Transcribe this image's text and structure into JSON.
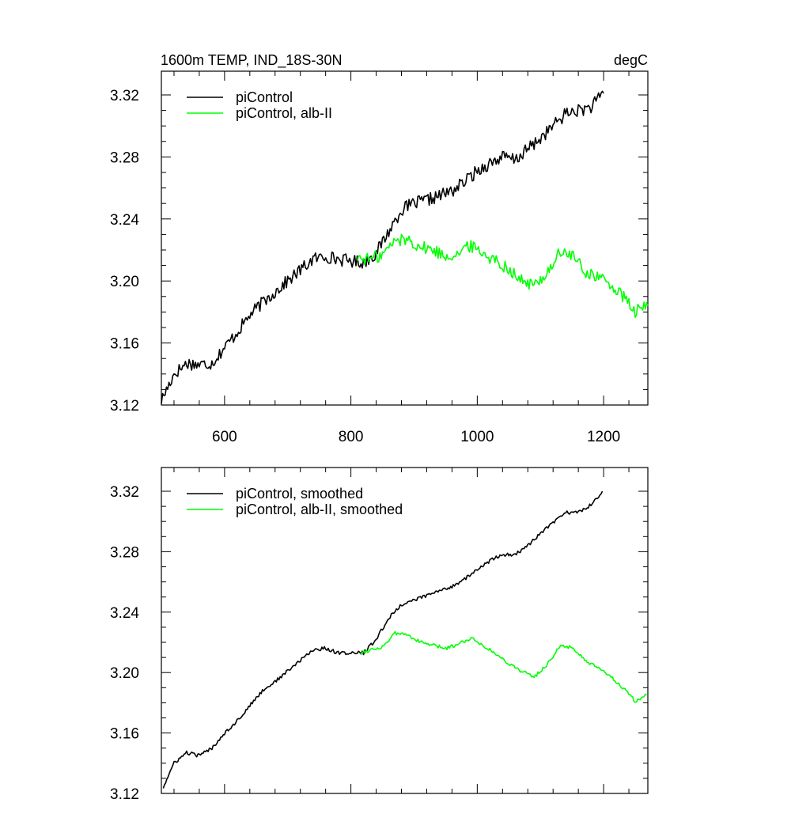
{
  "figure": {
    "title_left": "1600m TEMP, IND_18S-30N",
    "title_right": "degC"
  },
  "colors": {
    "piControl": "#000000",
    "alb_II": "#00ff00",
    "axes": "#000000"
  },
  "chart_data": [
    {
      "type": "line",
      "title": "1600m TEMP, IND_18S-30N",
      "units": "degC",
      "xlim": [
        500,
        1270
      ],
      "ylim": [
        3.12,
        3.33
      ],
      "x_ticks": [
        600,
        800,
        1000,
        1200
      ],
      "x_tick_labels": [
        "600",
        "800",
        "1000",
        "1200"
      ],
      "y_ticks": [
        3.12,
        3.16,
        3.2,
        3.24,
        3.28,
        3.32
      ],
      "y_tick_labels": [
        "3.12",
        "3.16",
        "3.20",
        "3.24",
        "3.28",
        "3.32"
      ],
      "legend_position": "top-left",
      "grid": false,
      "series": [
        {
          "name": "piControl",
          "color": "#000000",
          "x": [
            500,
            520,
            540,
            560,
            580,
            600,
            620,
            640,
            660,
            680,
            700,
            720,
            740,
            760,
            780,
            800,
            820,
            840,
            860,
            880,
            900,
            920,
            940,
            960,
            980,
            1000,
            1020,
            1040,
            1060,
            1080,
            1100,
            1120,
            1140,
            1160,
            1180,
            1200
          ],
          "y": [
            3.123,
            3.14,
            3.147,
            3.146,
            3.147,
            3.157,
            3.167,
            3.178,
            3.186,
            3.193,
            3.2,
            3.207,
            3.214,
            3.216,
            3.214,
            3.213,
            3.212,
            3.218,
            3.232,
            3.246,
            3.25,
            3.252,
            3.255,
            3.258,
            3.264,
            3.271,
            3.276,
            3.28,
            3.278,
            3.285,
            3.292,
            3.3,
            3.308,
            3.31,
            3.312,
            3.321
          ]
        },
        {
          "name": "piControl, alb-II",
          "color": "#00ff00",
          "x": [
            810,
            830,
            850,
            870,
            890,
            910,
            930,
            950,
            970,
            990,
            1010,
            1030,
            1050,
            1070,
            1090,
            1110,
            1130,
            1150,
            1170,
            1190,
            1210,
            1230,
            1250,
            1270
          ],
          "y": [
            3.215,
            3.214,
            3.217,
            3.226,
            3.227,
            3.222,
            3.22,
            3.216,
            3.218,
            3.223,
            3.218,
            3.213,
            3.208,
            3.2,
            3.197,
            3.205,
            3.218,
            3.217,
            3.206,
            3.203,
            3.198,
            3.19,
            3.18,
            3.184
          ]
        }
      ]
    },
    {
      "type": "line",
      "xlim": [
        500,
        1270
      ],
      "ylim": [
        3.12,
        3.33
      ],
      "x_ticks": [
        600,
        800,
        1000,
        1200
      ],
      "y_ticks": [
        3.12,
        3.16,
        3.2,
        3.24,
        3.28,
        3.32
      ],
      "y_tick_labels": [
        "3.12",
        "3.16",
        "3.20",
        "3.24",
        "3.28",
        "3.32"
      ],
      "legend_position": "top-left",
      "grid": false,
      "series": [
        {
          "name": "piControl, smoothed",
          "color": "#000000",
          "x": [
            503,
            520,
            540,
            560,
            580,
            600,
            620,
            640,
            660,
            680,
            700,
            720,
            740,
            760,
            780,
            800,
            820,
            840,
            860,
            880,
            900,
            920,
            940,
            960,
            980,
            1000,
            1020,
            1040,
            1060,
            1080,
            1100,
            1120,
            1140,
            1160,
            1180,
            1198
          ],
          "y": [
            3.124,
            3.14,
            3.147,
            3.145,
            3.15,
            3.16,
            3.168,
            3.178,
            3.188,
            3.194,
            3.201,
            3.208,
            3.215,
            3.216,
            3.213,
            3.213,
            3.213,
            3.222,
            3.236,
            3.245,
            3.248,
            3.251,
            3.254,
            3.257,
            3.262,
            3.268,
            3.274,
            3.278,
            3.278,
            3.284,
            3.292,
            3.299,
            3.306,
            3.306,
            3.311,
            3.32
          ]
        },
        {
          "name": "piControl, alb-II, smoothed",
          "color": "#00ff00",
          "x": [
            815,
            830,
            850,
            870,
            890,
            910,
            930,
            950,
            970,
            990,
            1010,
            1030,
            1050,
            1070,
            1090,
            1110,
            1130,
            1150,
            1170,
            1190,
            1210,
            1230,
            1250,
            1268
          ],
          "y": [
            3.213,
            3.215,
            3.217,
            3.226,
            3.225,
            3.22,
            3.218,
            3.216,
            3.219,
            3.223,
            3.218,
            3.212,
            3.206,
            3.201,
            3.197,
            3.205,
            3.217,
            3.217,
            3.208,
            3.203,
            3.198,
            3.19,
            3.181,
            3.185
          ]
        }
      ]
    }
  ]
}
